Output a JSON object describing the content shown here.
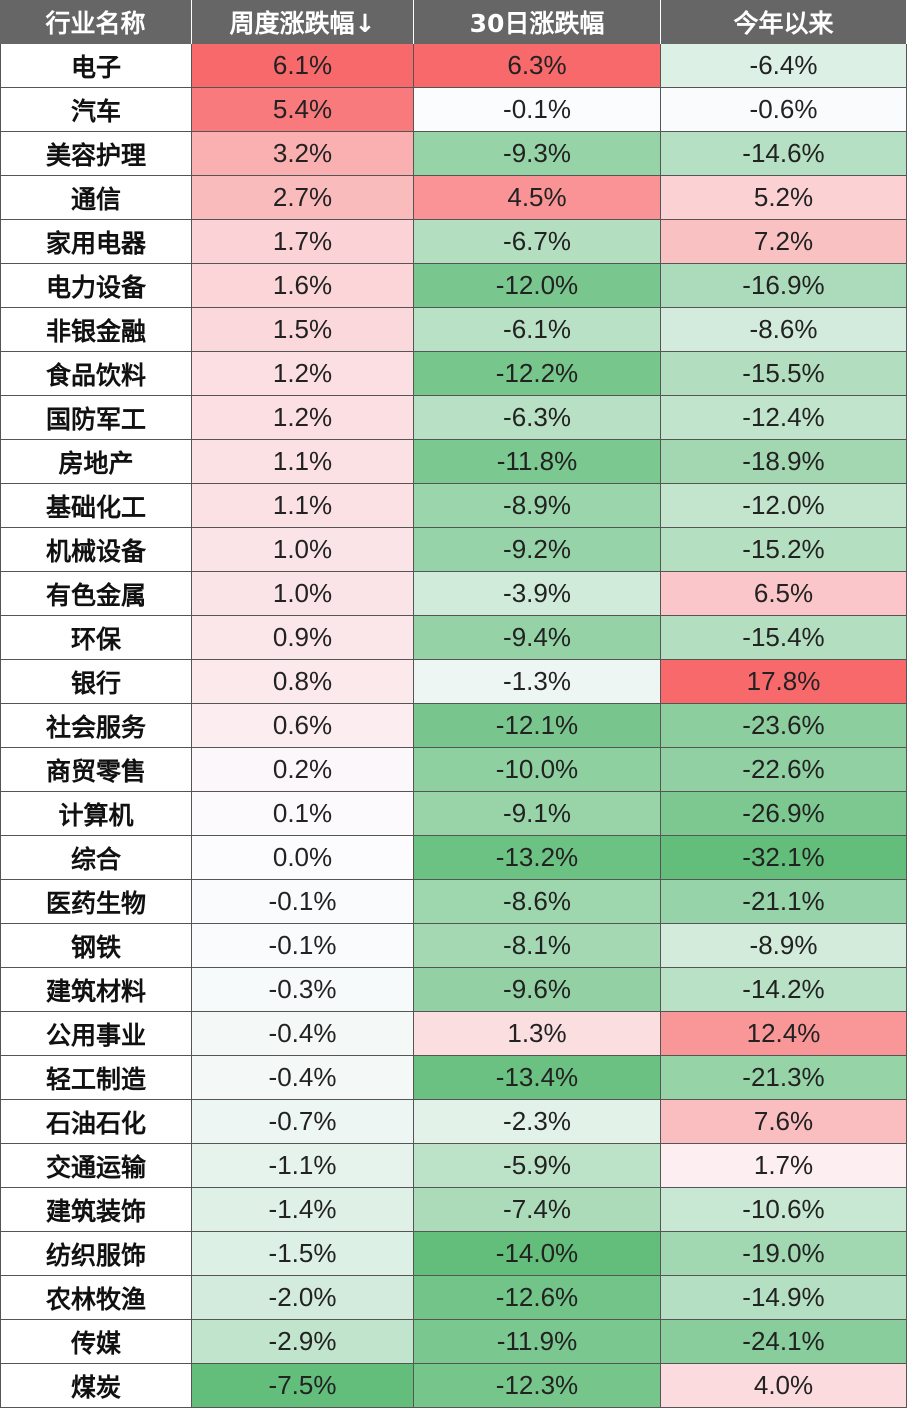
{
  "header": {
    "col_name": "行业名称",
    "col_week": "周度涨跌幅↓",
    "col_30d": "30日涨跌幅",
    "col_ytd": "今年以来"
  },
  "colors": {
    "header_bg": "#666666",
    "positive_max": "#f8696b",
    "negative_max": "#63be7b",
    "neutral": "#fcfcff"
  },
  "chart_data": {
    "type": "table",
    "columns": [
      "行业名称",
      "周度涨跌幅↓",
      "30日涨跌幅",
      "今年以来"
    ],
    "rows": [
      {
        "name": "电子",
        "week": 6.1,
        "d30": 6.3,
        "ytd": -6.4
      },
      {
        "name": "汽车",
        "week": 5.4,
        "d30": -0.1,
        "ytd": -0.6
      },
      {
        "name": "美容护理",
        "week": 3.2,
        "d30": -9.3,
        "ytd": -14.6
      },
      {
        "name": "通信",
        "week": 2.7,
        "d30": 4.5,
        "ytd": 5.2
      },
      {
        "name": "家用电器",
        "week": 1.7,
        "d30": -6.7,
        "ytd": 7.2
      },
      {
        "name": "电力设备",
        "week": 1.6,
        "d30": -12.0,
        "ytd": -16.9
      },
      {
        "name": "非银金融",
        "week": 1.5,
        "d30": -6.1,
        "ytd": -8.6
      },
      {
        "name": "食品饮料",
        "week": 1.2,
        "d30": -12.2,
        "ytd": -15.5
      },
      {
        "name": "国防军工",
        "week": 1.2,
        "d30": -6.3,
        "ytd": -12.4
      },
      {
        "name": "房地产",
        "week": 1.1,
        "d30": -11.8,
        "ytd": -18.9
      },
      {
        "name": "基础化工",
        "week": 1.1,
        "d30": -8.9,
        "ytd": -12.0
      },
      {
        "name": "机械设备",
        "week": 1.0,
        "d30": -9.2,
        "ytd": -15.2
      },
      {
        "name": "有色金属",
        "week": 1.0,
        "d30": -3.9,
        "ytd": 6.5
      },
      {
        "name": "环保",
        "week": 0.9,
        "d30": -9.4,
        "ytd": -15.4
      },
      {
        "name": "银行",
        "week": 0.8,
        "d30": -1.3,
        "ytd": 17.8
      },
      {
        "name": "社会服务",
        "week": 0.6,
        "d30": -12.1,
        "ytd": -23.6
      },
      {
        "name": "商贸零售",
        "week": 0.2,
        "d30": -10.0,
        "ytd": -22.6
      },
      {
        "name": "计算机",
        "week": 0.1,
        "d30": -9.1,
        "ytd": -26.9
      },
      {
        "name": "综合",
        "week": 0.0,
        "d30": -13.2,
        "ytd": -32.1
      },
      {
        "name": "医药生物",
        "week": -0.1,
        "d30": -8.6,
        "ytd": -21.1
      },
      {
        "name": "钢铁",
        "week": -0.1,
        "d30": -8.1,
        "ytd": -8.9
      },
      {
        "name": "建筑材料",
        "week": -0.3,
        "d30": -9.6,
        "ytd": -14.2
      },
      {
        "name": "公用事业",
        "week": -0.4,
        "d30": 1.3,
        "ytd": 12.4
      },
      {
        "name": "轻工制造",
        "week": -0.4,
        "d30": -13.4,
        "ytd": -21.3
      },
      {
        "name": "石油石化",
        "week": -0.7,
        "d30": -2.3,
        "ytd": 7.6
      },
      {
        "name": "交通运输",
        "week": -1.1,
        "d30": -5.9,
        "ytd": 1.7
      },
      {
        "name": "建筑装饰",
        "week": -1.4,
        "d30": -7.4,
        "ytd": -10.6
      },
      {
        "name": "纺织服饰",
        "week": -1.5,
        "d30": -14.0,
        "ytd": -19.0
      },
      {
        "name": "农林牧渔",
        "week": -2.0,
        "d30": -12.6,
        "ytd": -14.9
      },
      {
        "name": "传媒",
        "week": -2.9,
        "d30": -11.9,
        "ytd": -24.1
      },
      {
        "name": "煤炭",
        "week": -7.5,
        "d30": -12.3,
        "ytd": 4.0
      }
    ]
  }
}
